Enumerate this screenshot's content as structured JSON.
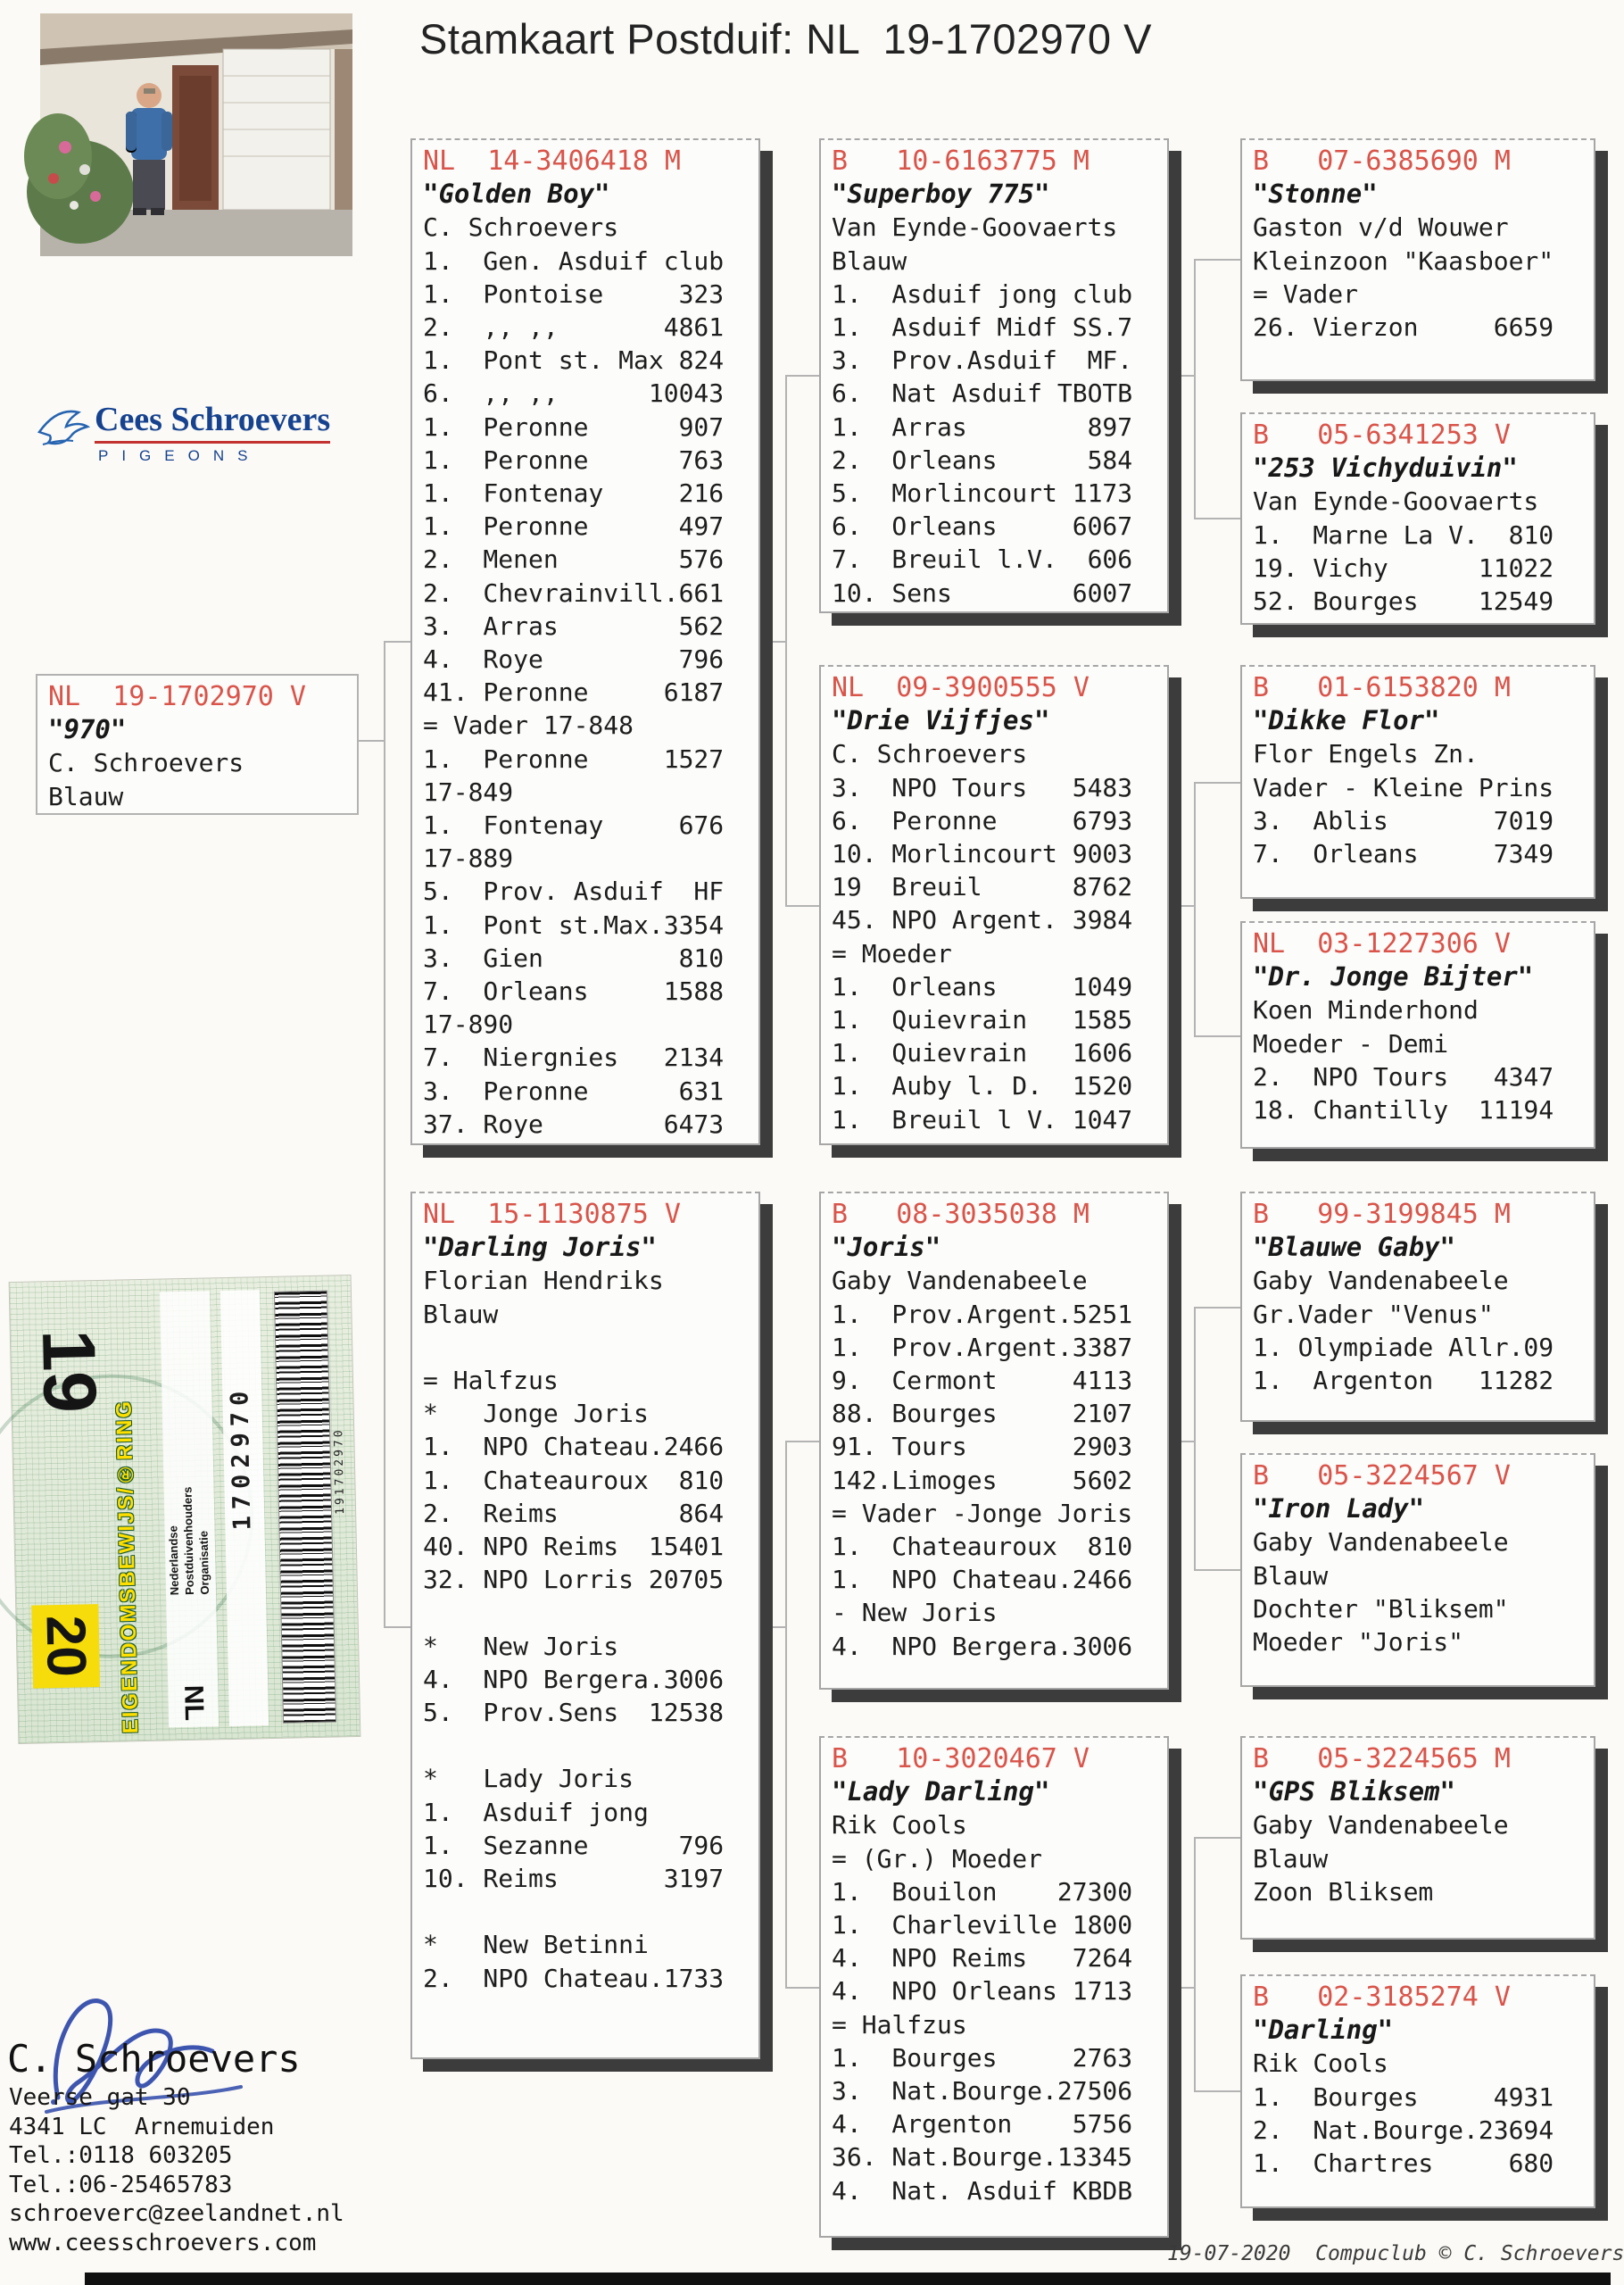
{
  "title": "Stamkaart Postduif: NL  19-1702970 V",
  "colors": {
    "header_red": "#d9544a",
    "box_shadow": "#3c3c3c",
    "logo_blue": "#16428f",
    "logo_underline_red": "#c23230",
    "signature_blue": "#2d47a8",
    "ring_sticker_yellow": "#f5dc0a"
  },
  "logo": {
    "name": "Cees Schroevers",
    "sub": "PIGEONS"
  },
  "boxes": {
    "subject": {
      "header": "NL  19-1702970 V",
      "name": "\"970\"",
      "lines": [
        "C. Schroevers",
        "Blauw"
      ]
    },
    "vader": {
      "header": "NL  14-3406418 M",
      "name": "\"Golden Boy\"",
      "lines": [
        "C. Schroevers",
        "1.  Gen. Asduif club",
        "1.  Pontoise     323",
        "2.  ,, ,,       4861",
        "1.  Pont st. Max 824",
        "6.  ,, ,,      10043",
        "1.  Peronne      907",
        "1.  Peronne      763",
        "1.  Fontenay     216",
        "1.  Peronne      497",
        "2.  Menen        576",
        "2.  Chevrainvill.661",
        "3.  Arras        562",
        "4.  Roye         796",
        "41. Peronne     6187",
        "= Vader 17-848",
        "1.  Peronne     1527",
        "17-849",
        "1.  Fontenay     676",
        "17-889",
        "5.  Prov. Asduif  HF",
        "1.  Pont st.Max.3354",
        "3.  Gien         810",
        "7.  Orleans     1588",
        "17-890",
        "7.  Niergnies   2134",
        "3.  Peronne      631",
        "37. Roye        6473"
      ]
    },
    "darling_joris": {
      "header": "NL  15-1130875 V",
      "name": "\"Darling Joris\"",
      "lines": [
        "Florian Hendriks",
        "Blauw",
        "",
        "= Halfzus",
        "*   Jonge Joris",
        "1.  NPO Chateau.2466",
        "1.  Chateauroux  810",
        "2.  Reims        864",
        "40. NPO Reims  15401",
        "32. NPO Lorris 20705",
        "",
        "*   New Joris",
        "4.  NPO Bergera.3006",
        "5.  Prov.Sens  12538",
        "",
        "*   Lady Joris",
        "1.  Asduif jong",
        "1.  Sezanne      796",
        "10. Reims       3197",
        "",
        "*   New Betinni",
        "2.  NPO Chateau.1733"
      ]
    },
    "superboy": {
      "header": "B   10-6163775 M",
      "name": "\"Superboy 775\"",
      "lines": [
        "Van Eynde-Goovaerts",
        "Blauw",
        "1.  Asduif jong club",
        "1.  Asduif Midf SS.7",
        "3.  Prov.Asduif  MF.",
        "6.  Nat Asduif TBOTB",
        "1.  Arras        897",
        "2.  Orleans      584",
        "5.  Morlincourt 1173",
        "6.  Orleans     6067",
        "7.  Breuil l.V.  606",
        "10. Sens        6007"
      ]
    },
    "drie_vijfjes": {
      "header": "NL  09-3900555 V",
      "name": "\"Drie Vijfjes\"",
      "lines": [
        "C. Schroevers",
        "3.  NPO Tours   5483",
        "6.  Peronne     6793",
        "10. Morlincourt 9003",
        "19  Breuil      8762",
        "45. NPO Argent. 3984",
        "= Moeder",
        "1.  Orleans     1049",
        "1.  Quievrain   1585",
        "1.  Quievrain   1606",
        "1.  Auby l. D.  1520",
        "1.  Breuil l V. 1047"
      ]
    },
    "joris": {
      "header": "B   08-3035038 M",
      "name": "\"Joris\"",
      "lines": [
        "Gaby Vandenabeele",
        "1.  Prov.Argent.5251",
        "1.  Prov.Argent.3387",
        "9.  Cermont     4113",
        "88. Bourges     2107",
        "91. Tours       2903",
        "142.Limoges     5602",
        "= Vader -Jonge Joris",
        "1.  Chateauroux  810",
        "1.  NPO Chateau.2466",
        "- New Joris",
        "4.  NPO Bergera.3006"
      ]
    },
    "lady_darling": {
      "header": "B   10-3020467 V",
      "name": "\"Lady Darling\"",
      "lines": [
        "Rik Cools",
        "= (Gr.) Moeder",
        "1.  Bouilon    27300",
        "1.  Charleville 1800",
        "4.  NPO Reims   7264",
        "4.  NPO Orleans 1713",
        "= Halfzus",
        "1.  Bourges     2763",
        "3.  Nat.Bourge.27506",
        "4.  Argenton    5756",
        "36. Nat.Bourge.13345",
        "4.  Nat. Asduif KBDB"
      ]
    },
    "stonne": {
      "header": "B   07-6385690 M",
      "name": "\"Stonne\"",
      "lines": [
        "Gaston v/d Wouwer",
        "Kleinzoon \"Kaasboer\"",
        "= Vader",
        "26. Vierzon     6659"
      ]
    },
    "vichyduivin": {
      "header": "B   05-6341253 V",
      "name": "\"253 Vichyduivin\"",
      "lines": [
        "Van Eynde-Goovaerts",
        "1.  Marne La V.  810",
        "19. Vichy      11022",
        "52. Bourges    12549"
      ]
    },
    "dikke_flor": {
      "header": "B   01-6153820 M",
      "name": "\"Dikke Flor\"",
      "lines": [
        "Flor Engels Zn.",
        "Vader - Kleine Prins",
        "3.  Ablis       7019",
        "7.  Orleans     7349"
      ]
    },
    "dr_jonge_bijter": {
      "header": "NL  03-1227306 V",
      "name": "\"Dr. Jonge Bijter\"",
      "lines": [
        "Koen Minderhond",
        "Moeder - Demi",
        "2.  NPO Tours   4347",
        "18. Chantilly  11194"
      ]
    },
    "blauwe_gaby": {
      "header": "B   99-3199845 M",
      "name": "\"Blauwe Gaby\"",
      "lines": [
        "Gaby Vandenabeele",
        "Gr.Vader \"Venus\"",
        "1. Olympiade Allr.09",
        "1.  Argenton   11282"
      ]
    },
    "iron_lady": {
      "header": "B   05-3224567 V",
      "name": "\"Iron Lady\"",
      "lines": [
        "Gaby Vandenabeele",
        "Blauw",
        "Dochter \"Bliksem\"",
        "Moeder \"Joris\""
      ]
    },
    "gps_bliksem": {
      "header": "B   05-3224565 M",
      "name": "\"GPS Bliksem\"",
      "lines": [
        "Gaby Vandenabeele",
        "Blauw",
        "Zoon Bliksem"
      ]
    },
    "darling": {
      "header": "B   02-3185274 V",
      "name": "\"Darling\"",
      "lines": [
        "Rik Cools",
        "1.  Bourges     4931",
        "2.  Nat.Bourge.23694",
        "1.  Chartres     680"
      ]
    }
  },
  "ring_card": {
    "year_top": "19",
    "year_bottom": "20",
    "label": "EIGENDOMSBEWIJS/®RING",
    "org_line1": "Nederlandse",
    "org_line2": "Postduivenhouders",
    "org_line3": "Organisatie",
    "country": "NL",
    "ring_number": "1702970",
    "barcode_number": "191702970"
  },
  "contact": {
    "name": "C. Schroevers",
    "lines": [
      "Veerse gat 30",
      "4341 LC  Arnemuiden",
      "Tel.:0118 603205",
      "Tel.:06-25465783",
      "schroeverc@zeelandnet.nl",
      "www.ceesschroevers.com"
    ]
  },
  "footer": "19-07-2020  Compuclub © C. Schroevers"
}
